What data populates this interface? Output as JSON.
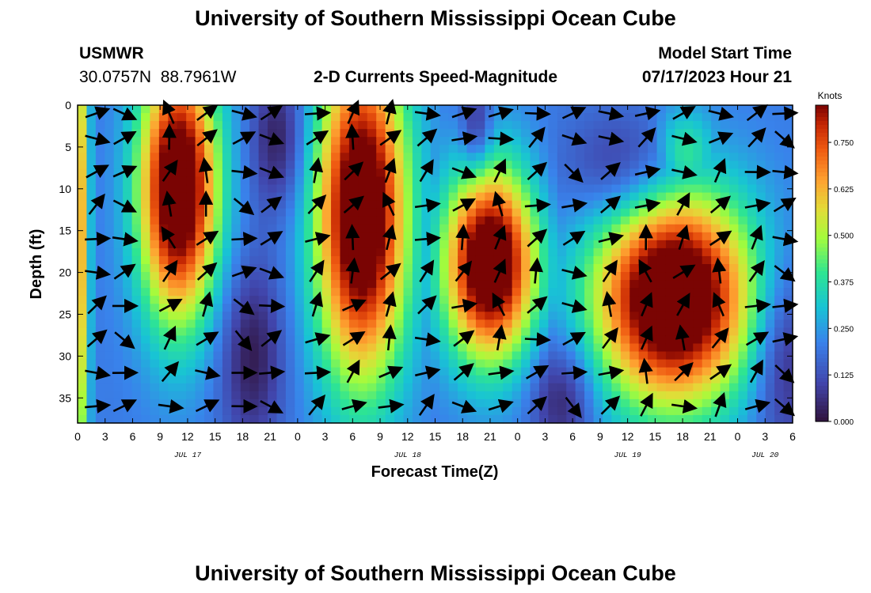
{
  "header": {
    "title": "University of Southern Mississippi Ocean Cube",
    "station": "USMWR",
    "location": "30.0757N  88.7961W",
    "subtitle": "2-D Currents Speed-Magnitude",
    "model_label": "Model Start Time",
    "model_time": "07/17/2023 Hour 21"
  },
  "footer": {
    "title": "University of Southern Mississippi Ocean Cube"
  },
  "colors": {
    "background": "#ffffff",
    "arrow": "#000000"
  },
  "chart_data": {
    "type": "heatmap",
    "title": "2-D Currents Speed-Magnitude",
    "xlabel": "Forecast Time(Z)",
    "ylabel": "Depth (ft)",
    "colorbar_label": "Knots",
    "colormap": "turbo",
    "x_hours_since_start_range": [
      0,
      78
    ],
    "x_tick_labels": [
      "0",
      "3",
      "6",
      "9",
      "12",
      "15",
      "18",
      "21",
      "0",
      "3",
      "6",
      "9",
      "12",
      "15",
      "18",
      "21",
      "0",
      "3",
      "6",
      "9",
      "12",
      "15",
      "18",
      "21",
      "0",
      "3",
      "6"
    ],
    "date_labels": [
      {
        "text": "JUL 17",
        "hour": 12
      },
      {
        "text": "JUL 18",
        "hour": 36
      },
      {
        "text": "JUL 19",
        "hour": 60
      },
      {
        "text": "JUL 20",
        "hour": 75
      }
    ],
    "y_range": [
      0,
      38
    ],
    "y_inverted": true,
    "y_ticks": [
      0,
      5,
      10,
      15,
      20,
      25,
      30,
      35
    ],
    "colorbar_range": [
      0,
      0.85
    ],
    "colorbar_ticks": [
      "0.000",
      "0.125",
      "0.250",
      "0.375",
      "0.500",
      "0.625",
      "0.750"
    ],
    "speed_blobs": [
      {
        "hour": 11,
        "depth": 10,
        "sh": 3.0,
        "sd": 11,
        "peak": 0.85
      },
      {
        "hour": 31,
        "depth": 13,
        "sh": 3.5,
        "sd": 14,
        "peak": 0.85
      },
      {
        "hour": 45,
        "depth": 19,
        "sh": 3.5,
        "sd": 8,
        "peak": 0.85
      },
      {
        "hour": 65,
        "depth": 23,
        "sh": 6.0,
        "sd": 9,
        "peak": 0.88
      },
      {
        "hour": 0,
        "depth": 15,
        "sh": 0.8,
        "sd": 25,
        "peak": 0.6
      },
      {
        "hour": 66,
        "depth": 6,
        "sh": 2.5,
        "sd": 4,
        "peak": 0.4
      }
    ],
    "slow_zones": [
      {
        "hour": 22,
        "depth": 4,
        "sh": 2.2,
        "sd": 6
      },
      {
        "hour": 43.5,
        "depth": 3,
        "sh": 1.2,
        "sd": 4
      },
      {
        "hour": 60,
        "depth": 8,
        "sh": 4.5,
        "sd": 5
      },
      {
        "hour": 53,
        "depth": 35,
        "sh": 2.5,
        "sd": 5
      },
      {
        "hour": 19,
        "depth": 30,
        "sh": 2.5,
        "sd": 8
      },
      {
        "hour": 77,
        "depth": 30,
        "sh": 2.5,
        "sd": 8
      }
    ],
    "vector_rows_depth": [
      1,
      4,
      8,
      12,
      16,
      20,
      24,
      28,
      32,
      36
    ],
    "vector_cols_hour": [
      2,
      5,
      10,
      14,
      18,
      21,
      26,
      30,
      34,
      38,
      42,
      46,
      50,
      54,
      58,
      62,
      66,
      70,
      74,
      77
    ],
    "vector_rule": "northward flow where speed high, eastward where low"
  }
}
